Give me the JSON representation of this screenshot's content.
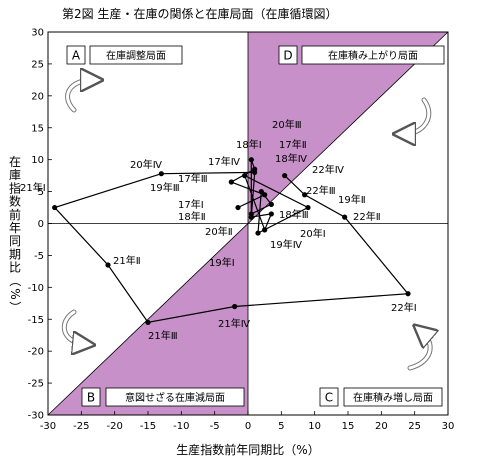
{
  "chart_data": {
    "type": "line",
    "title": "第2図  生産・在庫の関係と在庫局面（在庫循環図）",
    "xlabel": "生産指数前年同期比（%）",
    "ylabel": "在庫指数前年同期比（%）",
    "xlim": [
      -30,
      30
    ],
    "ylim": [
      -30,
      30
    ],
    "xticks": [
      -30,
      -25,
      -20,
      -15,
      -10,
      -5,
      0,
      5,
      10,
      15,
      20,
      25,
      30
    ],
    "yticks": [
      -30,
      -25,
      -20,
      -15,
      -10,
      -5,
      0,
      5,
      10,
      15,
      20,
      25,
      30
    ],
    "grid": false,
    "colors": {
      "shade": "#c890c8",
      "line": "#000000"
    },
    "series": [
      {
        "points": [
          {
            "label": "17年Ⅰ",
            "x": -1.5,
            "y": 2.5
          },
          {
            "label": "17年Ⅱ",
            "x": 2.5,
            "y": 4.5
          },
          {
            "label": "17年Ⅲ",
            "x": -2.5,
            "y": 6.5
          },
          {
            "label": "17年Ⅳ",
            "x": 1.0,
            "y": 8.5
          },
          {
            "label": "18年Ⅰ",
            "x": 0.5,
            "y": 10.0
          },
          {
            "label": "18年Ⅱ",
            "x": 0.5,
            "y": 1.5
          },
          {
            "label": "18年Ⅲ",
            "x": 3.5,
            "y": 3.0
          },
          {
            "label": "18年Ⅳ",
            "x": 2.0,
            "y": 5.0
          },
          {
            "label": "19年Ⅰ",
            "x": 1.5,
            "y": -1.5
          },
          {
            "label": "19年Ⅱ",
            "x": 9.0,
            "y": 2.5
          },
          {
            "label": "19年Ⅲ",
            "x": -0.5,
            "y": 7.5
          },
          {
            "label": "19年Ⅳ",
            "x": 2.5,
            "y": -1.0
          },
          {
            "label": "20年Ⅰ",
            "x": 3.5,
            "y": 1.5
          },
          {
            "label": "20年Ⅱ",
            "x": 0.5,
            "y": 1.0
          },
          {
            "label": "20年Ⅲ",
            "x": 1.0,
            "y": 8.0
          },
          {
            "label": "20年Ⅳ",
            "x": -13.0,
            "y": 7.8
          },
          {
            "label": "21年Ⅰ",
            "x": -29.0,
            "y": 2.5
          },
          {
            "label": "21年Ⅱ",
            "x": -21.0,
            "y": -6.5
          },
          {
            "label": "21年Ⅲ",
            "x": -15.0,
            "y": -15.5
          },
          {
            "label": "21年Ⅳ",
            "x": -2.0,
            "y": -13.0
          },
          {
            "label": "22年Ⅰ",
            "x": 24.0,
            "y": -11.0
          },
          {
            "label": "22年Ⅱ",
            "x": 14.5,
            "y": 1.0
          },
          {
            "label": "22年Ⅲ",
            "x": 8.5,
            "y": 4.5
          },
          {
            "label": "22年Ⅳ",
            "x": 5.5,
            "y": 7.5
          }
        ]
      }
    ],
    "quadrants": [
      {
        "letter": "A",
        "label": "在庫調整局面"
      },
      {
        "letter": "B",
        "label": "意図せざる在庫減局面"
      },
      {
        "letter": "C",
        "label": "在庫積み増し局面"
      },
      {
        "letter": "D",
        "label": "在庫積み上がり局面"
      }
    ]
  }
}
